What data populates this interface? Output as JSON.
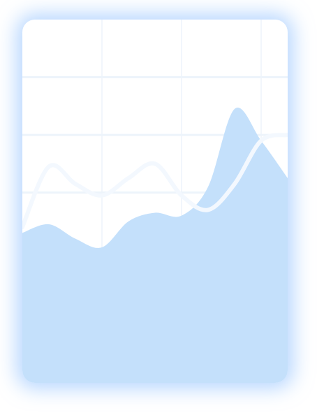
{
  "colors": {
    "card_background": "#ffffff",
    "card_glow": "#7ab5ff",
    "area_fill": "#c4e0fb",
    "line_stroke": "#f3f8fe",
    "grid": "#edf4fb"
  },
  "chart_data": {
    "type": "area",
    "title": "",
    "xlabel": "",
    "ylabel": "",
    "grid": true,
    "legend": "none",
    "x": [
      0,
      0.5,
      1.0,
      1.5,
      2.0,
      2.5,
      3.0,
      3.5,
      4.0,
      4.5,
      5.0
    ],
    "series": [
      {
        "kind": "area",
        "values": [
          1.3,
          1.45,
          1.2,
          1.05,
          1.5,
          1.65,
          1.6,
          2.1,
          3.45,
          2.9,
          2.25
        ]
      },
      {
        "kind": "line",
        "values": [
          1.4,
          2.45,
          2.15,
          1.95,
          2.25,
          2.5,
          1.95,
          1.7,
          2.15,
          2.9,
          3.0
        ]
      }
    ],
    "xlim": [
      0,
      5
    ],
    "ylim": [
      -1.3,
      5
    ]
  }
}
